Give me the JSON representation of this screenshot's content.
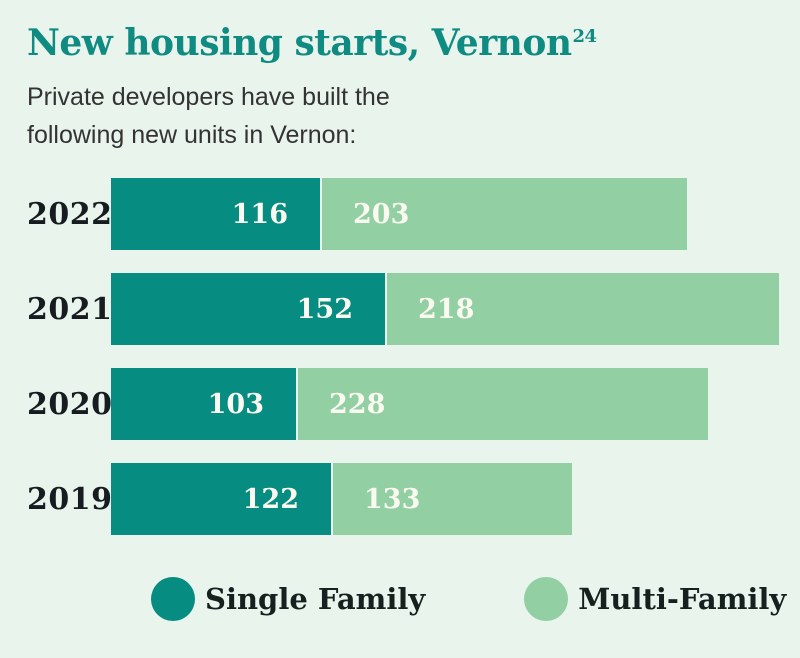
{
  "page": {
    "background_color": "#E9F4ED"
  },
  "header": {
    "title": "New housing starts, Vernon",
    "footnote_marker": "24",
    "subtitle_lines": [
      "Private developers have built the",
      "following new units in Vernon:"
    ]
  },
  "colors": {
    "title_teal": "#0F8B82",
    "single_family": "#068C80",
    "multi_family": "#92CFA3",
    "bar_value_text": "#FAFAF0",
    "year_label_text": "#161C1F"
  },
  "chart_data": {
    "type": "bar",
    "orientation": "horizontal",
    "stacked": true,
    "title": "New housing starts, Vernon",
    "categories": [
      "2022",
      "2021",
      "2020",
      "2019"
    ],
    "series": [
      {
        "name": "Single Family",
        "color": "#068C80",
        "values": [
          116,
          152,
          103,
          122
        ]
      },
      {
        "name": "Multi-Family",
        "color": "#92CFA3",
        "values": [
          203,
          218,
          228,
          133
        ]
      }
    ],
    "totals": [
      319,
      370,
      331,
      255
    ],
    "value_labels": "inside segments",
    "legend_position": "bottom",
    "grid": false,
    "axes_shown": false
  }
}
